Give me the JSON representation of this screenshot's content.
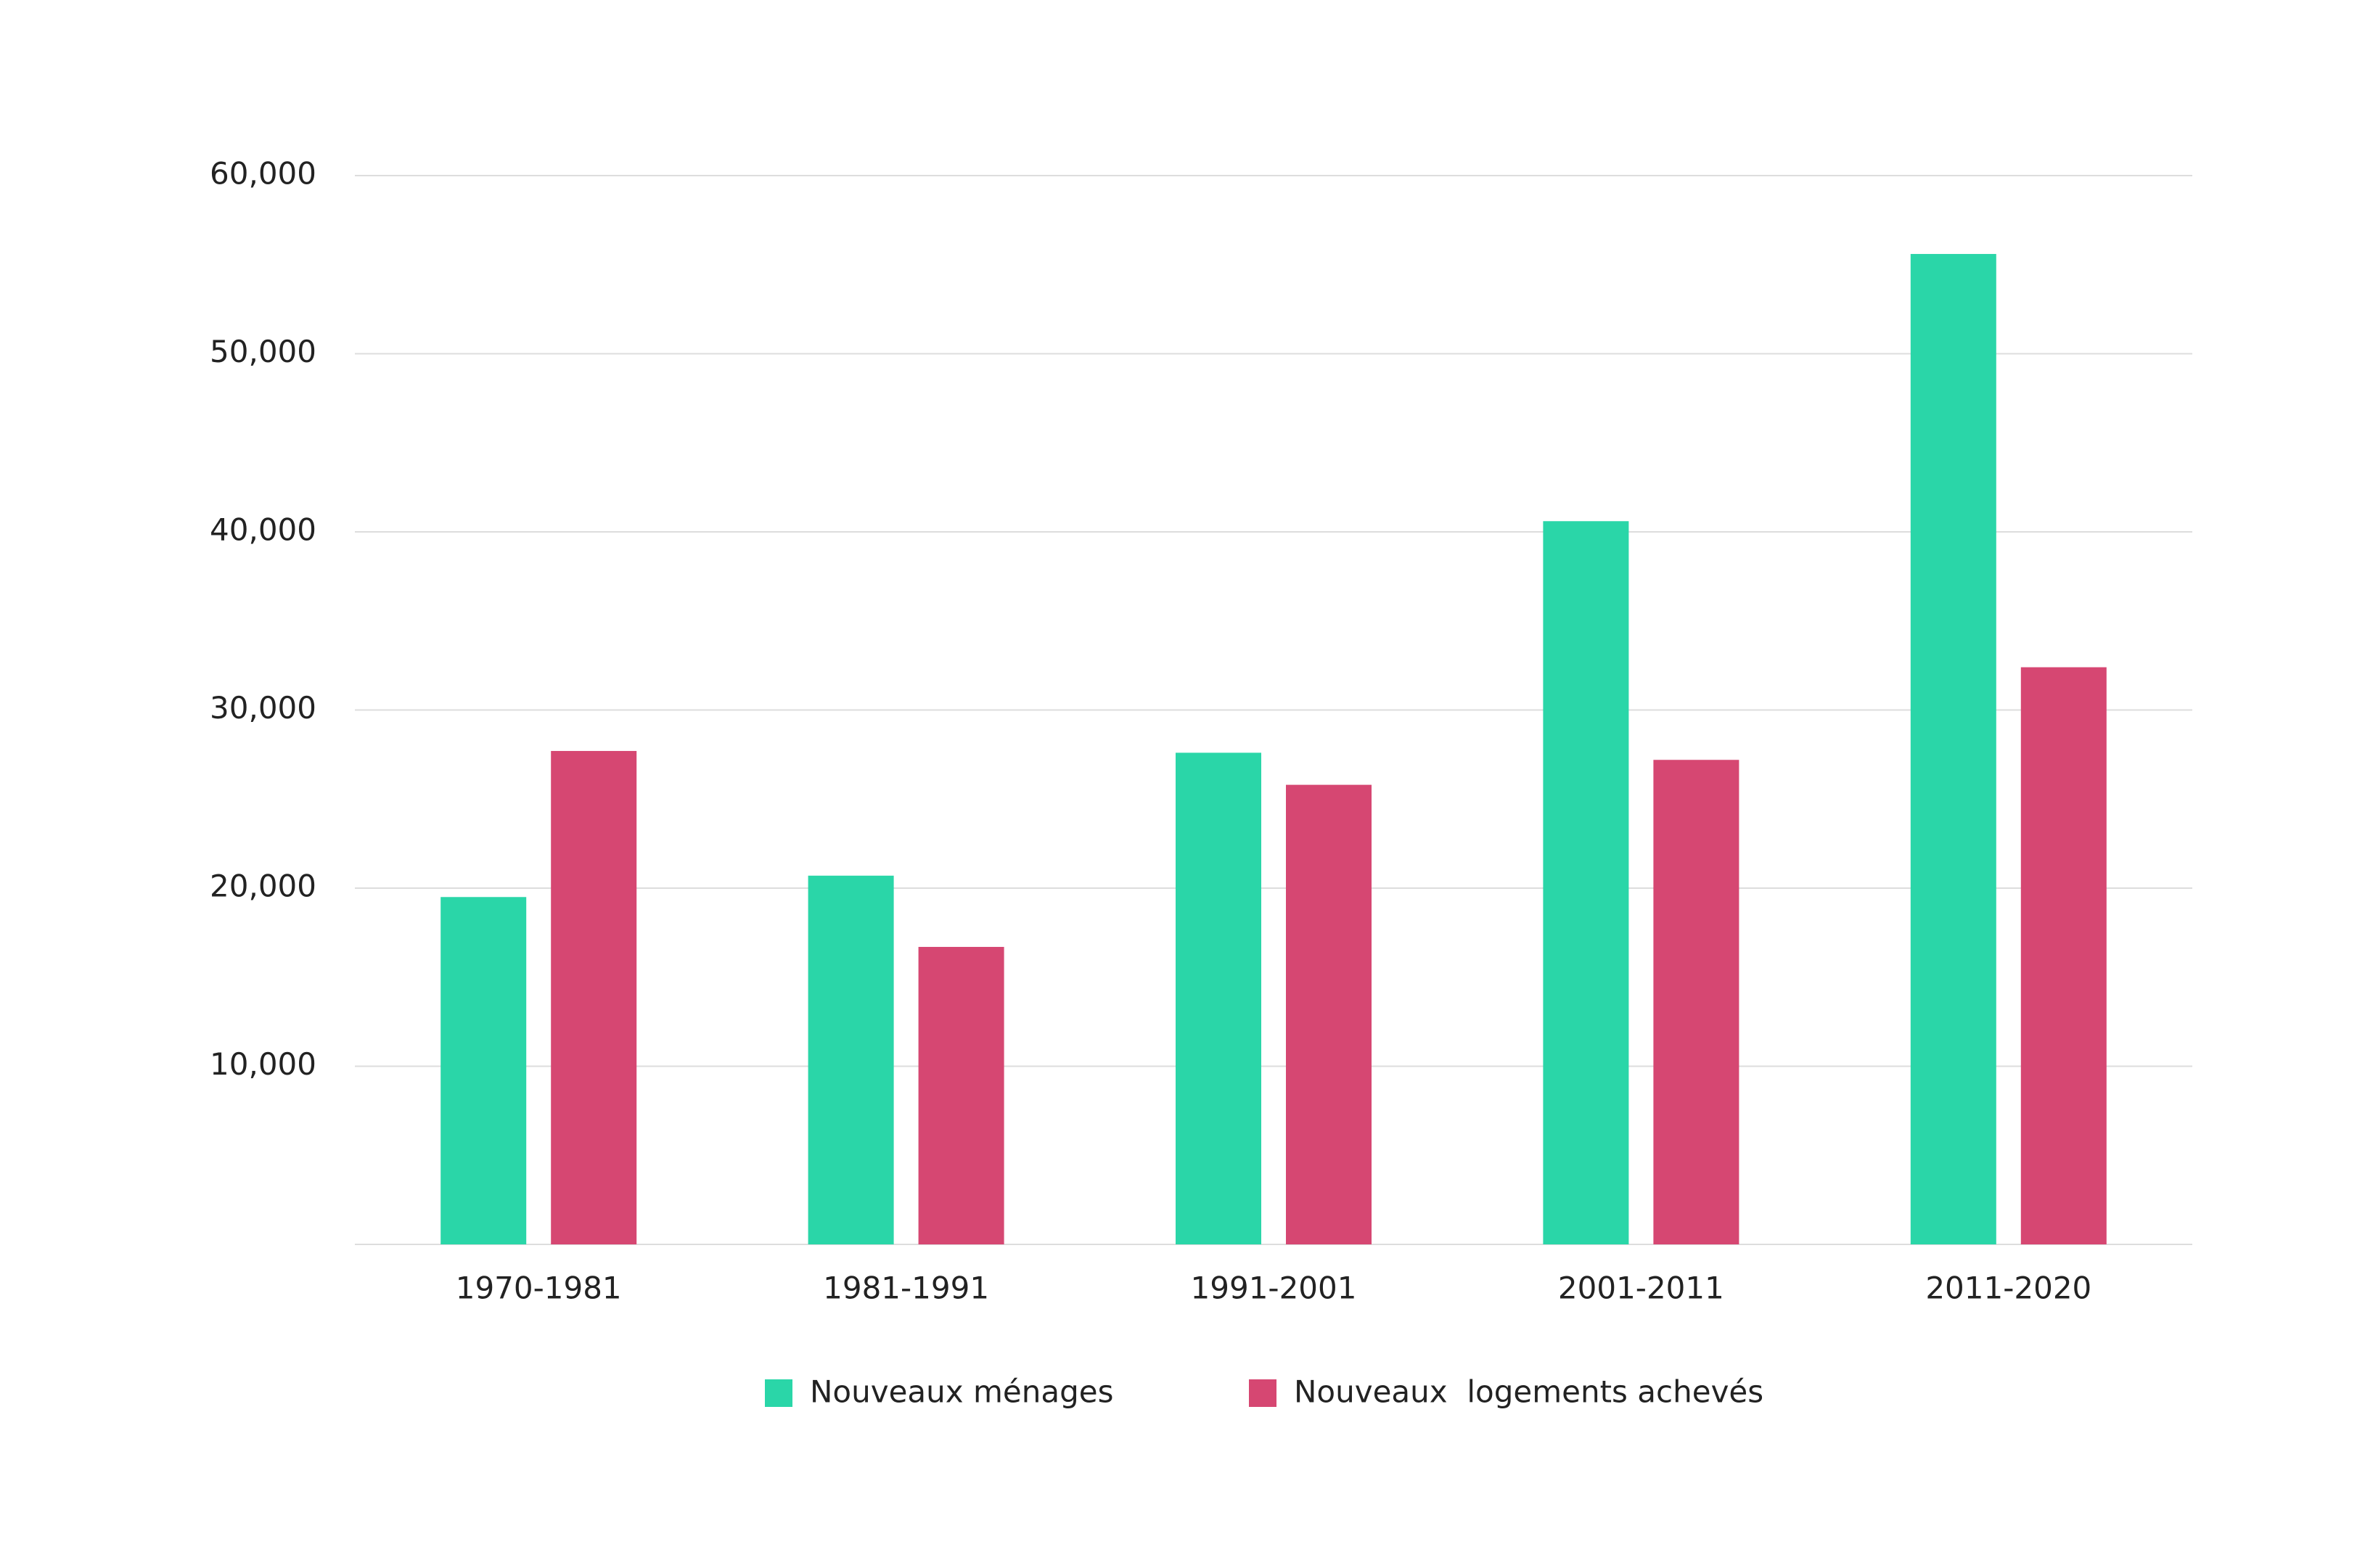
{
  "chart_data": {
    "type": "bar",
    "categories": [
      "1970-1981",
      "1981-1991",
      "1991-2001",
      "2001-2011",
      "2011-2020"
    ],
    "series": [
      {
        "name": "Nouveaux ménages",
        "color": "#2ad6a8",
        "values": [
          19500,
          20700,
          27600,
          40600,
          55600
        ]
      },
      {
        "name": "Nouveaux  logements achevés",
        "color": "#d64772",
        "values": [
          27700,
          16700,
          25800,
          27200,
          32400
        ]
      }
    ],
    "ylim": [
      0,
      60000
    ],
    "yticks": [
      {
        "value": 10000,
        "label": "10,000"
      },
      {
        "value": 20000,
        "label": "20,000"
      },
      {
        "value": 30000,
        "label": "30,000"
      },
      {
        "value": 40000,
        "label": "40,000"
      },
      {
        "value": 50000,
        "label": "50,000"
      },
      {
        "value": 60000,
        "label": "60,000"
      }
    ],
    "grid": true,
    "legend": "bottom"
  }
}
